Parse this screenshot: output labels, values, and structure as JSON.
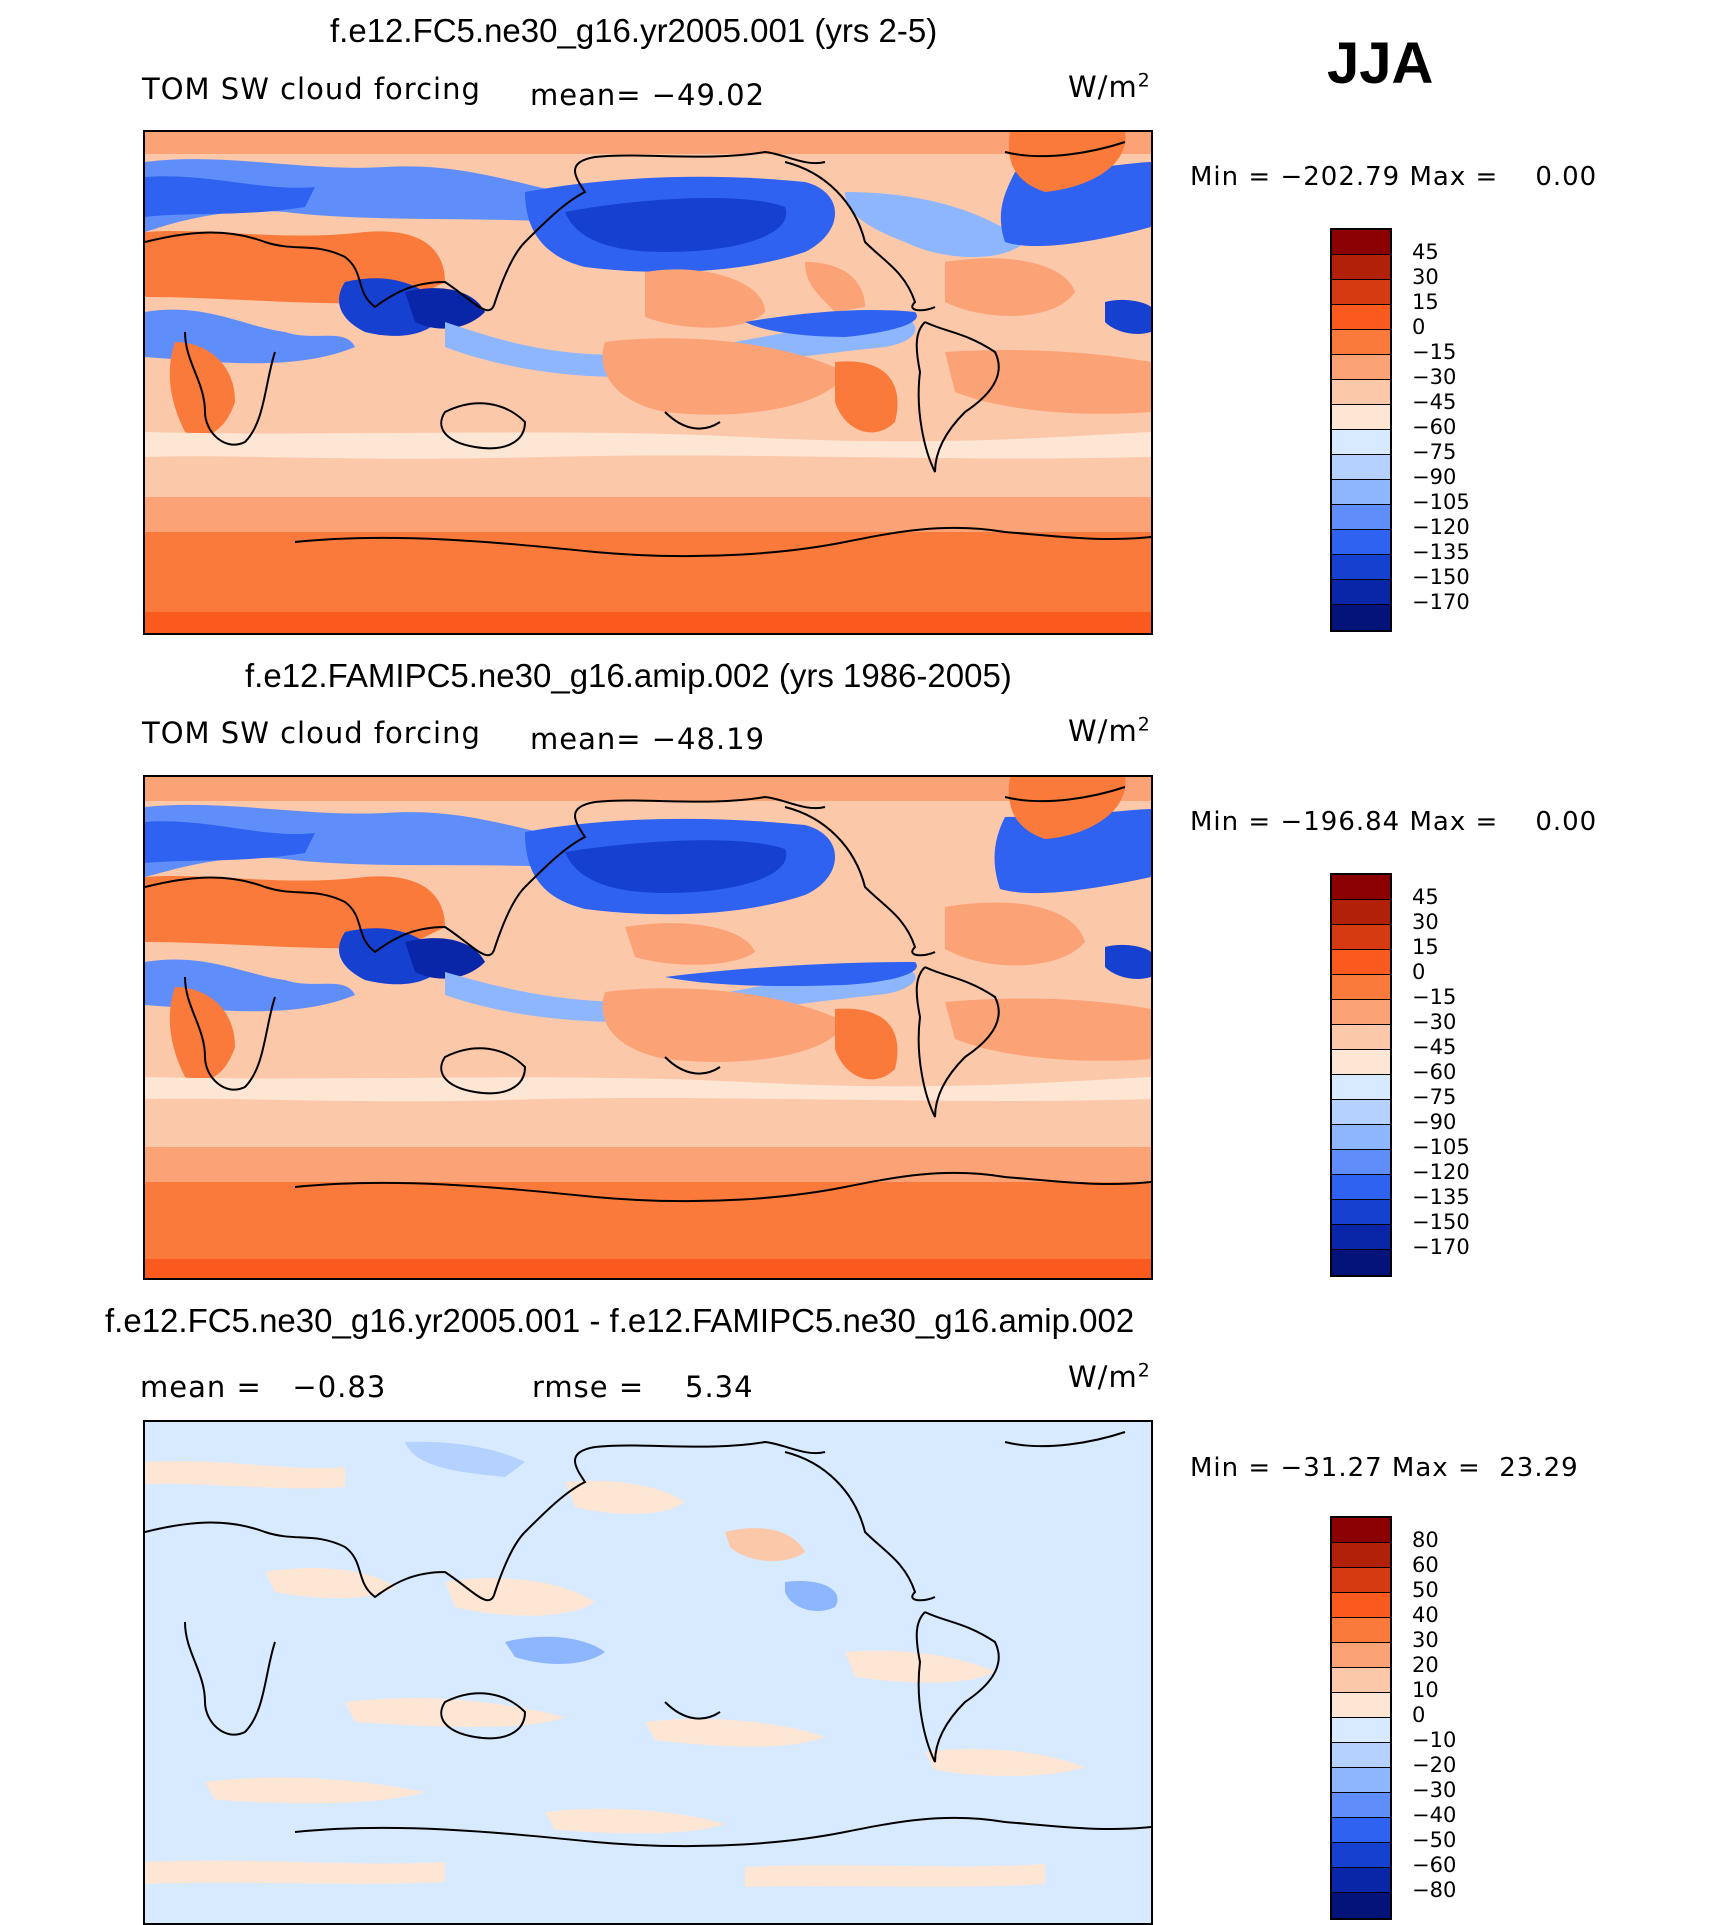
{
  "season": "JJA",
  "panels": [
    {
      "title": "f.e12.FC5.ne30_g16.yr2005.001 (yrs 2-5)",
      "left_label": "TOM SW cloud forcing",
      "mid_label": "mean= −49.02",
      "units": "W/m",
      "units_sup": "2",
      "minmax": "Min = −202.79 Max =    0.00",
      "colorbar": {
        "labels": [
          "45",
          "30",
          "15",
          "0",
          "−15",
          "−30",
          "−45",
          "−60",
          "−75",
          "−90",
          "−105",
          "−120",
          "−135",
          "−150",
          "−170"
        ],
        "colors": [
          "#8b0000",
          "#b3200a",
          "#d63a10",
          "#fb5a1e",
          "#fa7a3c",
          "#fba277",
          "#fcc8aa",
          "#fde6d4",
          "#d8eaff",
          "#b5d1ff",
          "#8db6ff",
          "#5f8efa",
          "#2f62f0",
          "#1540d0",
          "#0a26a8",
          "#04137a"
        ]
      }
    },
    {
      "title": "f.e12.FAMIPC5.ne30_g16.amip.002 (yrs 1986-2005)",
      "left_label": "TOM SW cloud forcing",
      "mid_label": "mean= −48.19",
      "units": "W/m",
      "units_sup": "2",
      "minmax": "Min = −196.84 Max =    0.00",
      "colorbar": {
        "labels": [
          "45",
          "30",
          "15",
          "0",
          "−15",
          "−30",
          "−45",
          "−60",
          "−75",
          "−90",
          "−105",
          "−120",
          "−135",
          "−150",
          "−170"
        ],
        "colors": [
          "#8b0000",
          "#b3200a",
          "#d63a10",
          "#fb5a1e",
          "#fa7a3c",
          "#fba277",
          "#fcc8aa",
          "#fde6d4",
          "#d8eaff",
          "#b5d1ff",
          "#8db6ff",
          "#5f8efa",
          "#2f62f0",
          "#1540d0",
          "#0a26a8",
          "#04137a"
        ]
      }
    },
    {
      "title": "f.e12.FC5.ne30_g16.yr2005.001 - f.e12.FAMIPC5.ne30_g16.amip.002",
      "left_label": "mean =   −0.83",
      "mid_label": "rmse =    5.34",
      "units": "W/m",
      "units_sup": "2",
      "minmax": "Min = −31.27 Max =  23.29",
      "colorbar": {
        "labels": [
          "80",
          "60",
          "50",
          "40",
          "30",
          "20",
          "10",
          "0",
          "−10",
          "−20",
          "−30",
          "−40",
          "−50",
          "−60",
          "−80"
        ],
        "colors": [
          "#8b0000",
          "#b3200a",
          "#d63a10",
          "#fb5a1e",
          "#fa7a3c",
          "#fba277",
          "#fcc8aa",
          "#fde6d4",
          "#d8eaff",
          "#b5d1ff",
          "#8db6ff",
          "#5f8efa",
          "#2f62f0",
          "#1540d0",
          "#0a26a8",
          "#04137a"
        ]
      }
    }
  ]
}
